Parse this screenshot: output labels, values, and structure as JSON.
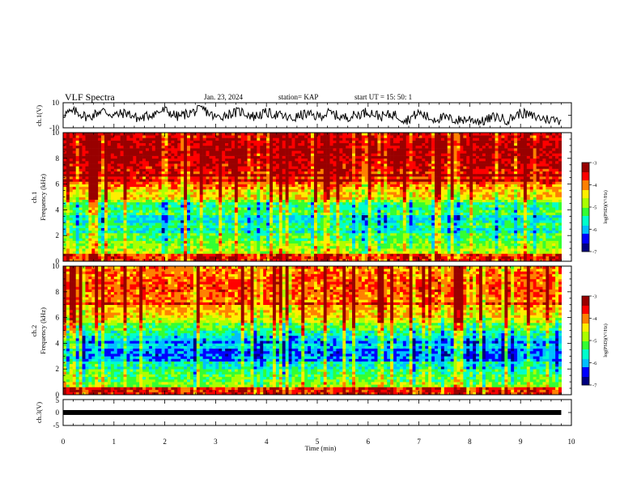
{
  "header": {
    "title": "VLF Spectra",
    "date": "Jan. 23, 2024",
    "station": "station= KAP",
    "start": "start  UT  =   15: 50: 1"
  },
  "colors": {
    "colormap": [
      "#000080",
      "#0000ff",
      "#00bfff",
      "#00ffcc",
      "#33ff33",
      "#aaff00",
      "#ffee00",
      "#ff8000",
      "#ff0000",
      "#990000"
    ],
    "trace": "#000000"
  },
  "chart_data": [
    {
      "type": "line",
      "name": "ch1-waveform",
      "ylabel": "ch.1(V)",
      "ylim": [
        -10,
        10
      ],
      "yticks": [
        "10",
        "-10"
      ],
      "x": [
        0.0,
        0.25,
        0.5,
        0.75,
        1.0,
        1.25,
        1.5,
        1.75,
        2.0,
        2.25,
        2.5,
        2.75,
        3.0,
        3.25,
        3.5,
        3.75,
        4.0,
        4.25,
        4.5,
        4.75,
        5.0,
        5.25,
        5.5,
        5.75,
        6.0,
        6.25,
        6.5,
        6.75,
        7.0,
        7.25,
        7.5,
        7.75,
        8.0,
        8.25,
        8.5,
        8.75,
        9.0,
        9.25,
        9.5,
        9.8
      ],
      "values": [
        1,
        3,
        -2,
        4,
        0,
        2,
        -3,
        1,
        4,
        -1,
        2,
        5,
        -2,
        1,
        3,
        -1,
        2,
        0,
        -3,
        1,
        -1,
        2,
        -2,
        0,
        3,
        -1,
        1,
        -4,
        2,
        -3,
        -2,
        -4,
        -3,
        -5,
        -1,
        -4,
        2,
        -1,
        -3,
        -4
      ]
    },
    {
      "type": "heatmap",
      "name": "ch1-spectrogram",
      "ylabel_line1": "ch.1",
      "ylabel_line2": "Frequency (kHz)",
      "ylim": [
        0,
        10
      ],
      "yticks": [
        "0",
        "2",
        "4",
        "6",
        "8",
        "10"
      ],
      "band_values": [
        -3.6,
        -4.7,
        -4.9,
        -5.2,
        -5.6,
        -5.4,
        -5.7,
        -5.2,
        -5.4,
        -4.9,
        -4.3,
        -4.0,
        -3.8,
        -3.6,
        -3.4,
        -3.3,
        -3.2,
        -3.2,
        -3.3,
        -3.4
      ],
      "colorbar": {
        "label": "log(PSD)(V²/Hz)",
        "range": [
          -7,
          -3
        ],
        "ticks": [
          "-3",
          "-4",
          "-5",
          "-6",
          "-7"
        ]
      }
    },
    {
      "type": "heatmap",
      "name": "ch2-spectrogram",
      "ylabel_line1": "ch.2",
      "ylabel_line2": "Frequency (kHz)",
      "ylim": [
        0,
        10
      ],
      "yticks": [
        "0",
        "2",
        "4",
        "6",
        "8",
        "10"
      ],
      "band_values": [
        -3.6,
        -4.9,
        -5.1,
        -5.3,
        -5.6,
        -6.1,
        -6.2,
        -5.9,
        -6.3,
        -5.5,
        -5.1,
        -4.6,
        -4.3,
        -4.2,
        -4.0,
        -3.9,
        -3.8,
        -3.8,
        -3.9,
        -4.0
      ],
      "colorbar": {
        "label": "log(PSD)(V²/Hz)",
        "range": [
          -7,
          -3
        ],
        "ticks": [
          "-3",
          "-4",
          "-5",
          "-6",
          "-7"
        ]
      }
    },
    {
      "type": "line",
      "name": "ch3-waveform",
      "ylabel": "ch.3(V)",
      "ylim": [
        -5,
        5
      ],
      "yticks": [
        "5",
        "0",
        "-5"
      ],
      "x": [
        0,
        9.8
      ],
      "values": [
        0,
        0
      ]
    }
  ],
  "xaxis": {
    "label": "Time (min)",
    "range": [
      0,
      10
    ],
    "ticks": [
      "0",
      "1",
      "2",
      "3",
      "4",
      "5",
      "6",
      "7",
      "8",
      "9",
      "10"
    ]
  }
}
